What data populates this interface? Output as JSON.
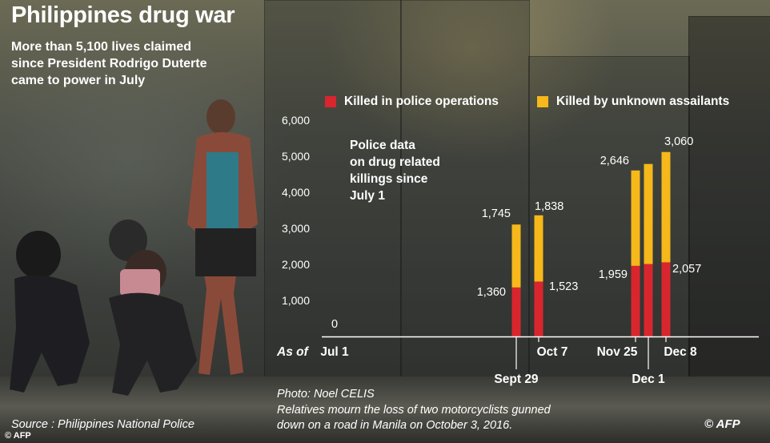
{
  "headline": "Philippines drug war",
  "subtitle": "More than 5,100 lives claimed\nsince President Rodrigo Duterte\ncame to power in July",
  "note": "Police data\non drug related\nkillings since\nJuly 1",
  "as_of_label": "As of",
  "colors": {
    "police": "#d9262e",
    "unknown": "#f6b81a",
    "axis": "#ffffff"
  },
  "chart_data": {
    "type": "bar",
    "stacked": true,
    "categories": [
      "Jul 1",
      "Sept 29",
      "Oct 7",
      "Nov 25",
      "Dec 1",
      "Dec 8"
    ],
    "series": [
      {
        "name": "Killed in police operations",
        "values": [
          0,
          1360,
          1523,
          1959,
          2010,
          2057
        ]
      },
      {
        "name": "Killed by unknown assailants",
        "values": [
          0,
          1745,
          1838,
          2646,
          2775,
          3060
        ]
      }
    ],
    "data_labels": [
      {
        "category": "Jul 1",
        "police": "0",
        "unknown": ""
      },
      {
        "category": "Sept 29",
        "police": "1,360",
        "unknown": "1,745"
      },
      {
        "category": "Oct 7",
        "police": "1,523",
        "unknown": "1,838"
      },
      {
        "category": "Nov 25",
        "police": "1,959",
        "unknown": "2,646"
      },
      {
        "category": "Dec 1",
        "police": "",
        "unknown": ""
      },
      {
        "category": "Dec 8",
        "police": "2,057",
        "unknown": "3,060"
      }
    ],
    "yticks": [
      1000,
      2000,
      3000,
      4000,
      5000,
      6000
    ],
    "ytick_labels": [
      "1,000",
      "2,000",
      "3,000",
      "4,000",
      "5,000",
      "6,000"
    ],
    "ylim": [
      0,
      6000
    ],
    "legend_position": "top-right",
    "grid": false
  },
  "caption": {
    "credit": "Photo: Noel CELIS",
    "text": "Relatives mourn the loss of two motorcyclists gunned\ndown on a road in Manila on October 3, 2016."
  },
  "source": "Source : Philippines National Police",
  "photo_credit": "© AFP",
  "logo_text": "© AFP"
}
